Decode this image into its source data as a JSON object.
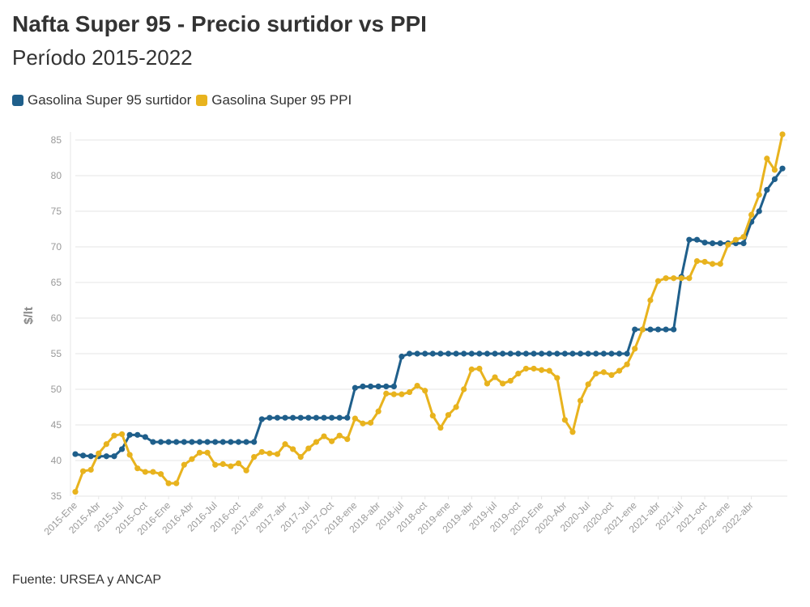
{
  "title": "Nafta Super 95 - Precio surtidor vs PPI",
  "subtitle": "Período 2015-2022",
  "source": "Fuente: URSEA y ANCAP",
  "colors": {
    "surtidor": "#1f5f8b",
    "ppi": "#e8b31e",
    "grid": "#e6e6e6",
    "axis": "#999999"
  },
  "chart_data": {
    "type": "line",
    "title": "Nafta Super 95 - Precio surtidor vs PPI",
    "subtitle": "Período 2015-2022",
    "xlabel": "",
    "ylabel": "$/lt",
    "ylim": [
      35,
      85
    ],
    "yticks": [
      35,
      40,
      45,
      50,
      55,
      60,
      65,
      70,
      75,
      80,
      85
    ],
    "grid": true,
    "legend": "top-left",
    "x_tick_labels": [
      "2015-Ene",
      "2015-Abr",
      "2015-Jul",
      "2015-Oct",
      "2016-Ene",
      "2016-Abr",
      "2016-Jul",
      "2016-oct",
      "2017-ene",
      "2017-abr",
      "2017-Jul",
      "2017-Oct",
      "2018-ene",
      "2018-abr",
      "2018-jul",
      "2018-oct",
      "2019-ene",
      "2019-abr",
      "2019-jul",
      "2019-oct",
      "2020-Ene",
      "2020-Abr",
      "2020-Jul",
      "2020-oct",
      "2021-ene",
      "2021-abr",
      "2021-jul",
      "2021-oct",
      "2022-ene",
      "2022-abr"
    ],
    "series": [
      {
        "name": "Gasolina Super 95 surtidor",
        "values": [
          40.9,
          40.7,
          40.6,
          40.6,
          40.6,
          40.6,
          41.6,
          43.6,
          43.6,
          43.3,
          42.6,
          42.6,
          42.6,
          42.6,
          42.6,
          42.6,
          42.6,
          42.6,
          42.6,
          42.6,
          42.6,
          42.6,
          42.6,
          42.6,
          45.8,
          46.0,
          46.0,
          46.0,
          46.0,
          46.0,
          46.0,
          46.0,
          46.0,
          46.0,
          46.0,
          46.0,
          50.2,
          50.4,
          50.4,
          50.4,
          50.4,
          50.4,
          54.6,
          55.0,
          55.0,
          55.0,
          55.0,
          55.0,
          55.0,
          55.0,
          55.0,
          55.0,
          55.0,
          55.0,
          55.0,
          55.0,
          55.0,
          55.0,
          55.0,
          55.0,
          55.0,
          55.0,
          55.0,
          55.0,
          55.0,
          55.0,
          55.0,
          55.0,
          55.0,
          55.0,
          55.0,
          55.0,
          58.4,
          58.4,
          58.4,
          58.4,
          58.4,
          58.4,
          65.8,
          71.0,
          71.0,
          70.6,
          70.5,
          70.5,
          70.5,
          70.5,
          70.5,
          73.5,
          75.0,
          78.0,
          79.5,
          81.0
        ]
      },
      {
        "name": "Gasolina Super 95 PPI",
        "values": [
          35.6,
          38.5,
          38.7,
          41.0,
          42.3,
          43.5,
          43.7,
          40.8,
          38.9,
          38.4,
          38.4,
          38.1,
          36.8,
          36.8,
          39.4,
          40.2,
          41.1,
          41.1,
          39.4,
          39.5,
          39.2,
          39.6,
          38.6,
          40.5,
          41.2,
          41.0,
          40.9,
          42.3,
          41.6,
          40.5,
          41.7,
          42.6,
          43.4,
          42.7,
          43.5,
          43.0,
          45.9,
          45.2,
          45.3,
          46.9,
          49.4,
          49.3,
          49.3,
          49.6,
          50.5,
          49.8,
          46.3,
          44.6,
          46.4,
          47.5,
          50.0,
          52.8,
          52.9,
          50.8,
          51.7,
          50.8,
          51.2,
          52.2,
          52.9,
          52.9,
          52.7,
          52.6,
          51.6,
          45.7,
          44.0,
          48.4,
          50.7,
          52.2,
          52.4,
          52.0,
          52.6,
          53.5,
          55.7,
          58.4,
          62.5,
          65.2,
          65.6,
          65.6,
          65.6,
          65.6,
          68.0,
          67.9,
          67.6,
          67.6,
          70.3,
          71.0,
          71.4,
          74.5,
          77.3,
          82.4,
          80.8,
          85.8
        ]
      }
    ]
  }
}
